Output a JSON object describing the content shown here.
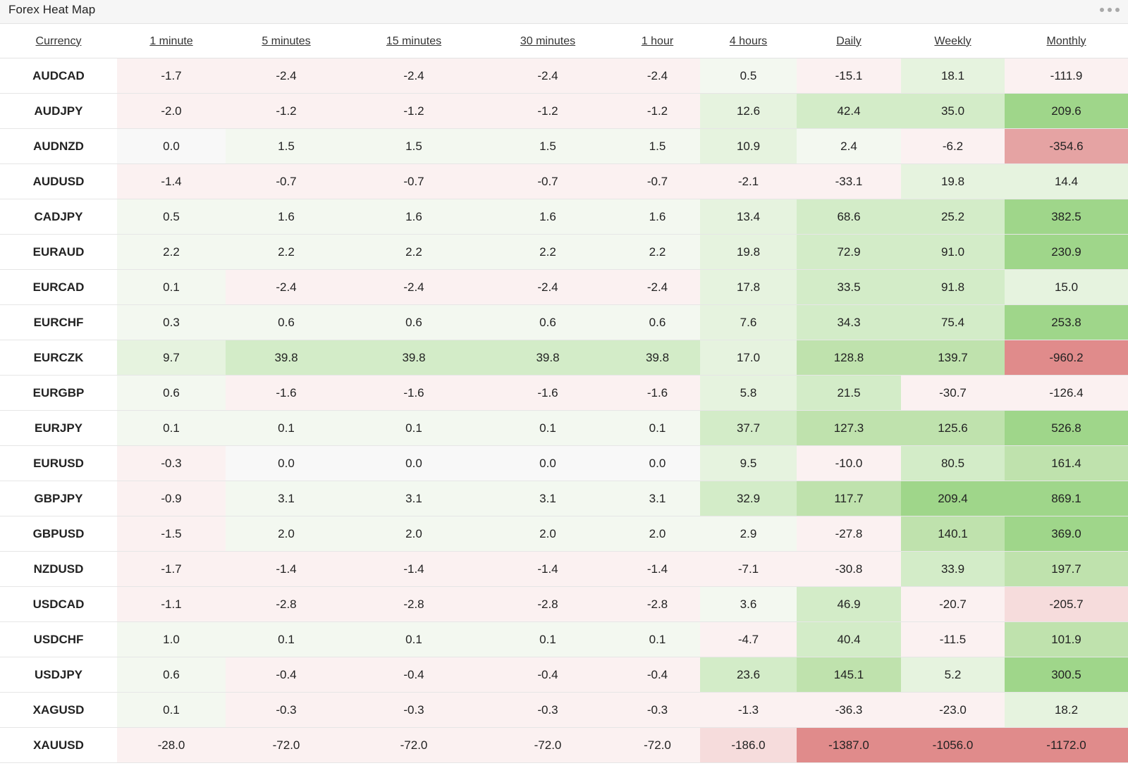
{
  "widget": {
    "title": "Forex Heat Map",
    "menu_icon": "more-horizontal-icon"
  },
  "columns": [
    "Currency",
    "1 minute",
    "5 minutes",
    "15 minutes",
    "30 minutes",
    "1 hour",
    "4 hours",
    "Daily",
    "Weekly",
    "Monthly"
  ],
  "rows": [
    {
      "pair": "AUDCAD",
      "values": [
        "-1.7",
        "-2.4",
        "-2.4",
        "-2.4",
        "-2.4",
        "0.5",
        "-15.1",
        "18.1",
        "-111.9"
      ]
    },
    {
      "pair": "AUDJPY",
      "values": [
        "-2.0",
        "-1.2",
        "-1.2",
        "-1.2",
        "-1.2",
        "12.6",
        "42.4",
        "35.0",
        "209.6"
      ]
    },
    {
      "pair": "AUDNZD",
      "values": [
        "0.0",
        "1.5",
        "1.5",
        "1.5",
        "1.5",
        "10.9",
        "2.4",
        "-6.2",
        "-354.6"
      ]
    },
    {
      "pair": "AUDUSD",
      "values": [
        "-1.4",
        "-0.7",
        "-0.7",
        "-0.7",
        "-0.7",
        "-2.1",
        "-33.1",
        "19.8",
        "14.4"
      ]
    },
    {
      "pair": "CADJPY",
      "values": [
        "0.5",
        "1.6",
        "1.6",
        "1.6",
        "1.6",
        "13.4",
        "68.6",
        "25.2",
        "382.5"
      ]
    },
    {
      "pair": "EURAUD",
      "values": [
        "2.2",
        "2.2",
        "2.2",
        "2.2",
        "2.2",
        "19.8",
        "72.9",
        "91.0",
        "230.9"
      ]
    },
    {
      "pair": "EURCAD",
      "values": [
        "0.1",
        "-2.4",
        "-2.4",
        "-2.4",
        "-2.4",
        "17.8",
        "33.5",
        "91.8",
        "15.0"
      ]
    },
    {
      "pair": "EURCHF",
      "values": [
        "0.3",
        "0.6",
        "0.6",
        "0.6",
        "0.6",
        "7.6",
        "34.3",
        "75.4",
        "253.8"
      ]
    },
    {
      "pair": "EURCZK",
      "values": [
        "9.7",
        "39.8",
        "39.8",
        "39.8",
        "39.8",
        "17.0",
        "128.8",
        "139.7",
        "-960.2"
      ]
    },
    {
      "pair": "EURGBP",
      "values": [
        "0.6",
        "-1.6",
        "-1.6",
        "-1.6",
        "-1.6",
        "5.8",
        "21.5",
        "-30.7",
        "-126.4"
      ]
    },
    {
      "pair": "EURJPY",
      "values": [
        "0.1",
        "0.1",
        "0.1",
        "0.1",
        "0.1",
        "37.7",
        "127.3",
        "125.6",
        "526.8"
      ]
    },
    {
      "pair": "EURUSD",
      "values": [
        "-0.3",
        "0.0",
        "0.0",
        "0.0",
        "0.0",
        "9.5",
        "-10.0",
        "80.5",
        "161.4"
      ]
    },
    {
      "pair": "GBPJPY",
      "values": [
        "-0.9",
        "3.1",
        "3.1",
        "3.1",
        "3.1",
        "32.9",
        "117.7",
        "209.4",
        "869.1"
      ]
    },
    {
      "pair": "GBPUSD",
      "values": [
        "-1.5",
        "2.0",
        "2.0",
        "2.0",
        "2.0",
        "2.9",
        "-27.8",
        "140.1",
        "369.0"
      ]
    },
    {
      "pair": "NZDUSD",
      "values": [
        "-1.7",
        "-1.4",
        "-1.4",
        "-1.4",
        "-1.4",
        "-7.1",
        "-30.8",
        "33.9",
        "197.7"
      ]
    },
    {
      "pair": "USDCAD",
      "values": [
        "-1.1",
        "-2.8",
        "-2.8",
        "-2.8",
        "-2.8",
        "3.6",
        "46.9",
        "-20.7",
        "-205.7"
      ]
    },
    {
      "pair": "USDCHF",
      "values": [
        "1.0",
        "0.1",
        "0.1",
        "0.1",
        "0.1",
        "-4.7",
        "40.4",
        "-11.5",
        "101.9"
      ]
    },
    {
      "pair": "USDJPY",
      "values": [
        "0.6",
        "-0.4",
        "-0.4",
        "-0.4",
        "-0.4",
        "23.6",
        "145.1",
        "5.2",
        "300.5"
      ]
    },
    {
      "pair": "XAGUSD",
      "values": [
        "0.1",
        "-0.3",
        "-0.3",
        "-0.3",
        "-0.3",
        "-1.3",
        "-36.3",
        "-23.0",
        "18.2"
      ]
    },
    {
      "pair": "XAUUSD",
      "values": [
        "-28.0",
        "-72.0",
        "-72.0",
        "-72.0",
        "-72.0",
        "-186.0",
        "-1387.0",
        "-1056.0",
        "-1172.0"
      ]
    }
  ],
  "colors": {
    "pos_very_light": "#f3f8f0",
    "pos_light": "#e6f3df",
    "pos_medium": "#d3ecc8",
    "pos_strong": "#bfe2ad",
    "pos_very_strong": "#9fd68a",
    "neg_very_light": "#fbf1f1",
    "neg_light": "#f6dcdc",
    "neg_strong": "#e5a3a3",
    "neg_very_strong": "#e08b8b",
    "neutral": "#f8f8f8"
  }
}
